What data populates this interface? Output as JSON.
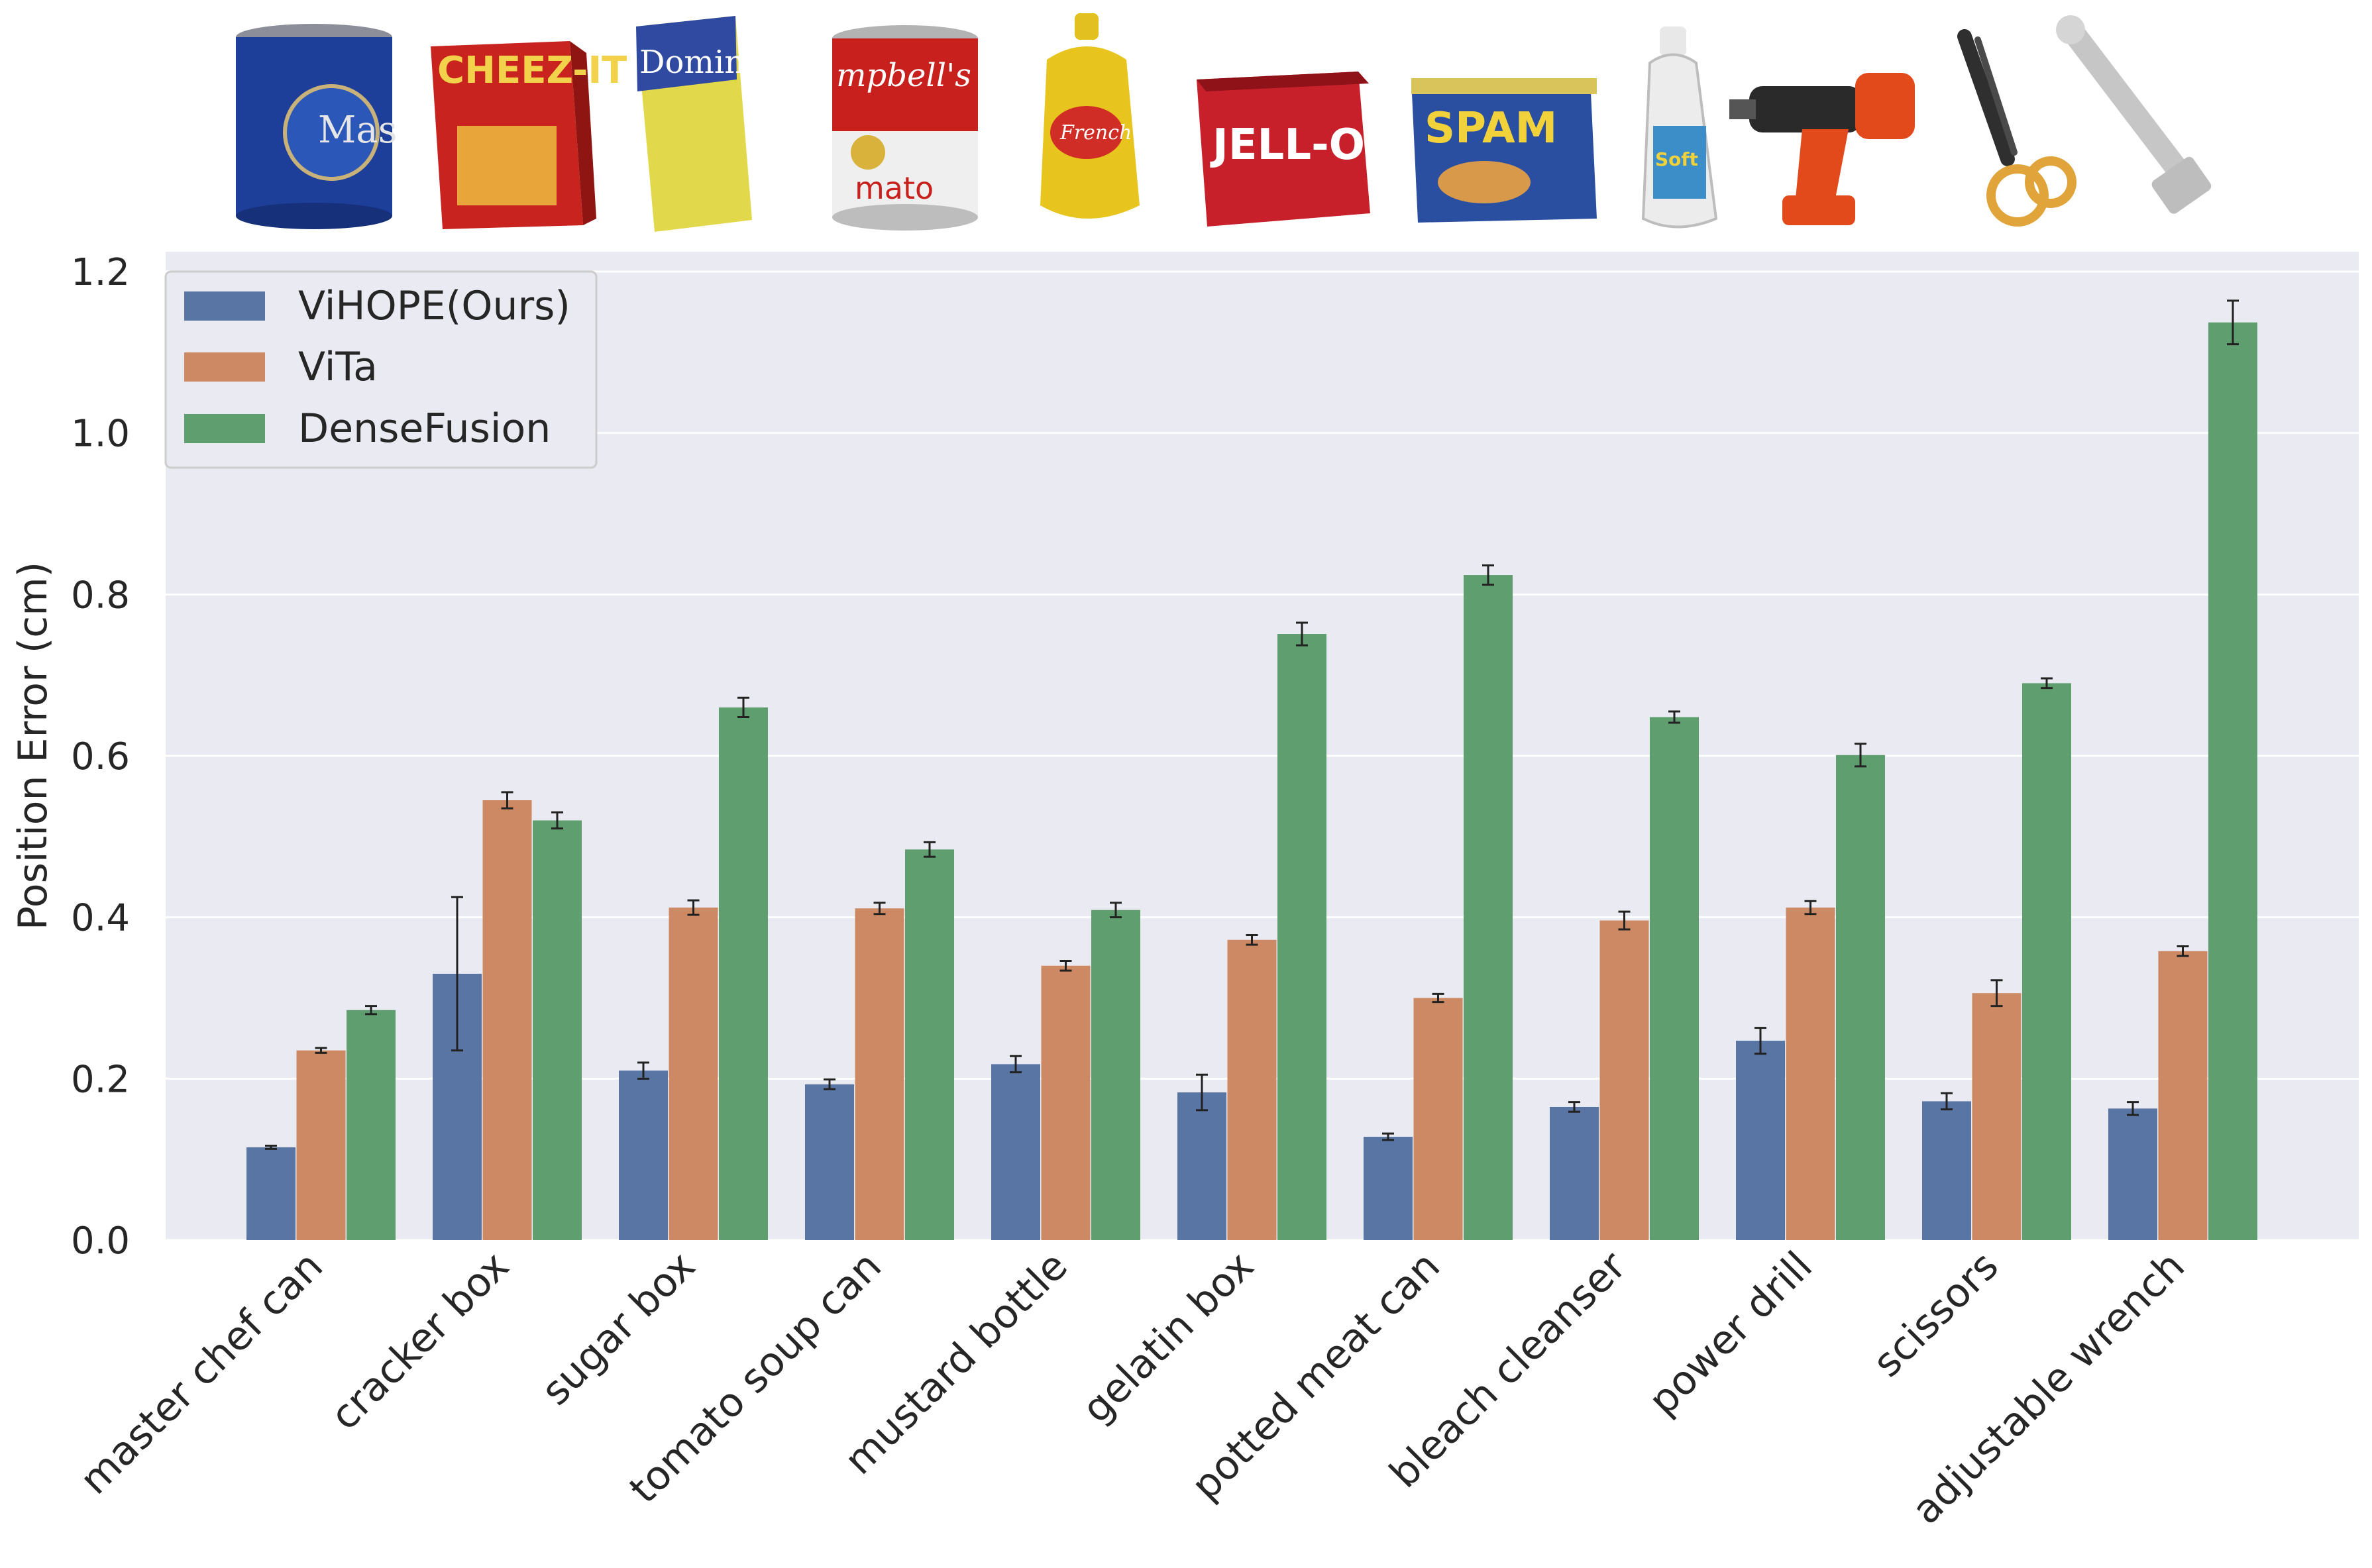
{
  "chart_data": {
    "type": "bar",
    "title": "",
    "xlabel": "",
    "ylabel": "Position Error (cm)",
    "ylim": [
      0,
      1.2
    ],
    "yticks": [
      0.0,
      0.2,
      0.4,
      0.6,
      0.8,
      1.0,
      1.2
    ],
    "ytick_labels": [
      "0.0",
      "0.2",
      "0.4",
      "0.6",
      "0.8",
      "1.0",
      "1.2"
    ],
    "grid": true,
    "legend_position": "top-left",
    "categories": [
      "master chef can",
      "cracker box",
      "sugar box",
      "tomato soup can",
      "mustard bottle",
      "gelatin box",
      "potted meat can",
      "bleach cleanser",
      "power drill",
      "scissors",
      "adjustable wrench"
    ],
    "series": [
      {
        "name": "ViHOPE(Ours)",
        "color": "#5875a4",
        "values": [
          0.115,
          0.33,
          0.21,
          0.193,
          0.218,
          0.183,
          0.128,
          0.165,
          0.247,
          0.172,
          0.163
        ],
        "errors": [
          0.002,
          0.095,
          0.01,
          0.006,
          0.01,
          0.022,
          0.004,
          0.006,
          0.016,
          0.01,
          0.008
        ]
      },
      {
        "name": "ViTa",
        "color": "#cc8963",
        "values": [
          0.235,
          0.545,
          0.412,
          0.411,
          0.34,
          0.372,
          0.3,
          0.396,
          0.412,
          0.306,
          0.358
        ],
        "errors": [
          0.003,
          0.01,
          0.009,
          0.007,
          0.006,
          0.006,
          0.005,
          0.011,
          0.008,
          0.016,
          0.006
        ]
      },
      {
        "name": "DenseFusion",
        "color": "#5f9e6e",
        "values": [
          0.285,
          0.52,
          0.66,
          0.484,
          0.409,
          0.751,
          0.824,
          0.648,
          0.601,
          0.69,
          1.137
        ],
        "errors": [
          0.005,
          0.01,
          0.012,
          0.009,
          0.009,
          0.014,
          0.012,
          0.007,
          0.014,
          0.006,
          0.027
        ]
      }
    ],
    "thumbnails": [
      "master-chef-can-icon",
      "cracker-box-icon",
      "sugar-box-icon",
      "tomato-soup-can-icon",
      "mustard-bottle-icon",
      "gelatin-box-icon",
      "potted-meat-can-icon",
      "bleach-cleanser-icon",
      "power-drill-icon",
      "scissors-icon",
      "adjustable-wrench-icon"
    ]
  }
}
